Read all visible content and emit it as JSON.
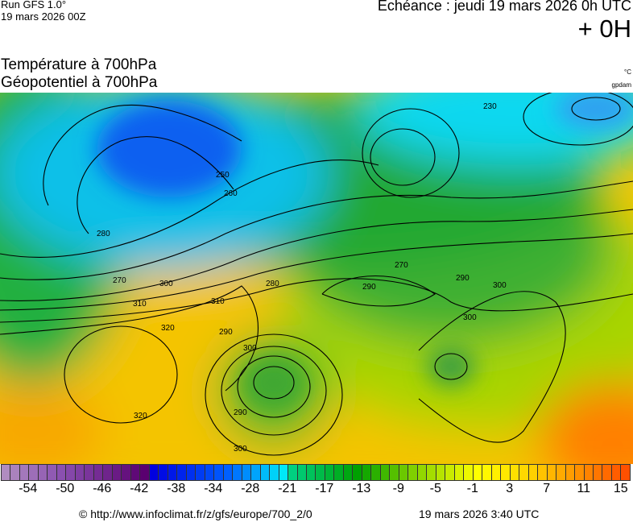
{
  "header": {
    "run_line1": "Run GFS 1.0°",
    "run_line2": "19 mars 2026 00Z",
    "echeance": "Echéance : jeudi 19 mars 2026 0h UTC",
    "lead_time": "+ 0H",
    "title1": "Température à 700hPa",
    "title2": "Géopotentiel à 700hPa",
    "unit_temp": "°C",
    "unit_geo": "gpdam"
  },
  "map": {
    "contour_labels": [
      "250",
      "260",
      "270",
      "280",
      "290",
      "300",
      "310",
      "320",
      "270",
      "280",
      "290",
      "300",
      "300",
      "290",
      "300",
      "310",
      "320",
      "300",
      "290",
      "230"
    ],
    "temperature_colors": {
      "cold": "#1070f0",
      "cool": "#10c8f0",
      "mild": "#30b030",
      "warm": "#f0e000",
      "hot": "#f8b000"
    }
  },
  "colorbar": {
    "stops": [
      "#b08cc0",
      "#8a50b0",
      "#5a0070",
      "#0000e0",
      "#0060ff",
      "#00e8f8",
      "#00d080",
      "#00a000",
      "#80d000",
      "#ffff00",
      "#ffd000",
      "#ff5000"
    ],
    "stop_cells": [
      0,
      6,
      15,
      16,
      24,
      30,
      31,
      38,
      44,
      51,
      57,
      67
    ],
    "cell_count": 68,
    "ticks": [
      "-54",
      "-50",
      "-46",
      "-42",
      "-38",
      "-34",
      "-28",
      "-21",
      "-17",
      "-13",
      "-9",
      "-5",
      "-1",
      "3",
      "7",
      "11",
      "15"
    ]
  },
  "footer": {
    "credit": "© http://www.infoclimat.fr/z/gfs/europe/700_2/0",
    "timestamp": "19 mars 2026  3:40 UTC"
  }
}
